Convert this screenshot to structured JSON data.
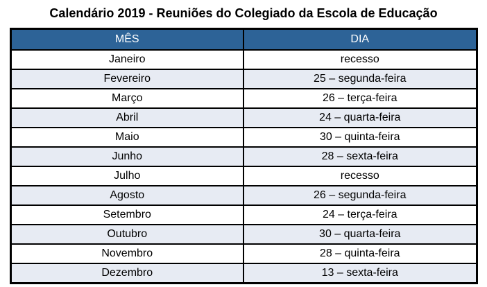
{
  "title": "Calendário 2019 - Reuniões do Colegiado da Escola de Educação",
  "table": {
    "headers": [
      "MÊS",
      "DIA"
    ],
    "rows": [
      [
        "Janeiro",
        "recesso"
      ],
      [
        "Fevereiro",
        "25 – segunda-feira"
      ],
      [
        "Março",
        "26 – terça-feira"
      ],
      [
        "Abril",
        "24 – quarta-feira"
      ],
      [
        "Maio",
        "30 – quinta-feira"
      ],
      [
        "Junho",
        "28 – sexta-feira"
      ],
      [
        "Julho",
        "recesso"
      ],
      [
        "Agosto",
        "26 – segunda-feira"
      ],
      [
        "Setembro",
        "24 – terça-feira"
      ],
      [
        "Outubro",
        "30 – quarta-feira"
      ],
      [
        "Novembro",
        "28 – quinta-feira"
      ],
      [
        "Dezembro",
        "13 – sexta-feira"
      ]
    ]
  },
  "colors": {
    "header_bg": "#2d6397",
    "header_text": "#ffffff",
    "row_bg": "#ffffff",
    "row_alt_bg": "#e7ebf3",
    "border": "#000000",
    "title_text": "#000000"
  }
}
